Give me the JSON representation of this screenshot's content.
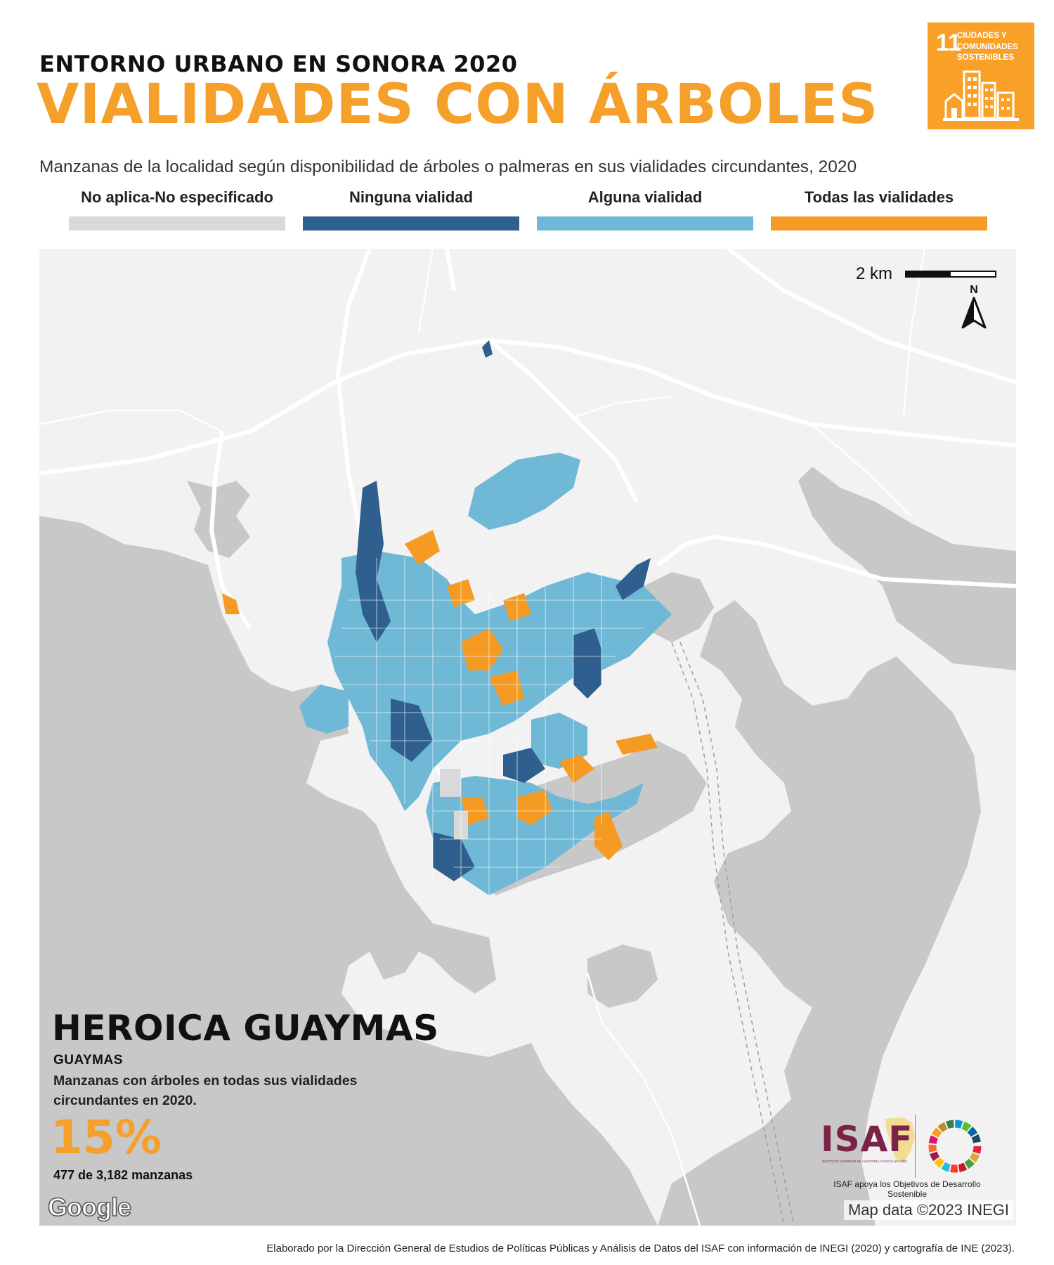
{
  "header": {
    "supertitle": "ENTORNO URBANO EN SONORA 2020",
    "title": "VIALIDADES CON ÁRBOLES",
    "subtitle": "Manzanas de la localidad según disponibilidad de árboles o palmeras en sus vialidades circundantes, 2020"
  },
  "sdg_badge": {
    "number": "11",
    "label": "CIUDADES Y\nCOMUNIDADES\nSOSTENIBLES",
    "color": "#f9a028",
    "icon": "city-buildings-icon"
  },
  "legend": [
    {
      "label": "No aplica-No especificado",
      "color": "#d9d9d9"
    },
    {
      "label": "Ninguna vialidad",
      "color": "#2f5f8f"
    },
    {
      "label": "Alguna vialidad",
      "color": "#6fb8d6"
    },
    {
      "label": "Todas las vialidades",
      "color": "#f59a23"
    }
  ],
  "map": {
    "scale_label": "2 km",
    "north_label": "N",
    "place_name": "HEROICA GUAYMAS",
    "municipality": "GUAYMAS",
    "description": "Manzanas con árboles en todas sus vialidades circundantes en 2020.",
    "percentage": "15%",
    "count_text": "477 de 3,182 manzanas",
    "provider": "Google",
    "attribution": "Map data ©2023 INEGI",
    "water_color": "#c8c8c8",
    "land_color": "#f2f2f2",
    "road_color": "#ffffff"
  },
  "isaf": {
    "logo": "ISAF",
    "small_text": "INSTITUTO SUPERIOR DE AUDITORÍA Y FISCALIZACIÓN",
    "caption": "ISAF apoya los Objetivos de Desarrollo Sostenible",
    "color": "#7b2247"
  },
  "footer": "Elaborado por la Dirección General de Estudios de Políticas Públicas y Análisis de Datos del ISAF con información de INEGI (2020) y cartografía de INE (2023)."
}
